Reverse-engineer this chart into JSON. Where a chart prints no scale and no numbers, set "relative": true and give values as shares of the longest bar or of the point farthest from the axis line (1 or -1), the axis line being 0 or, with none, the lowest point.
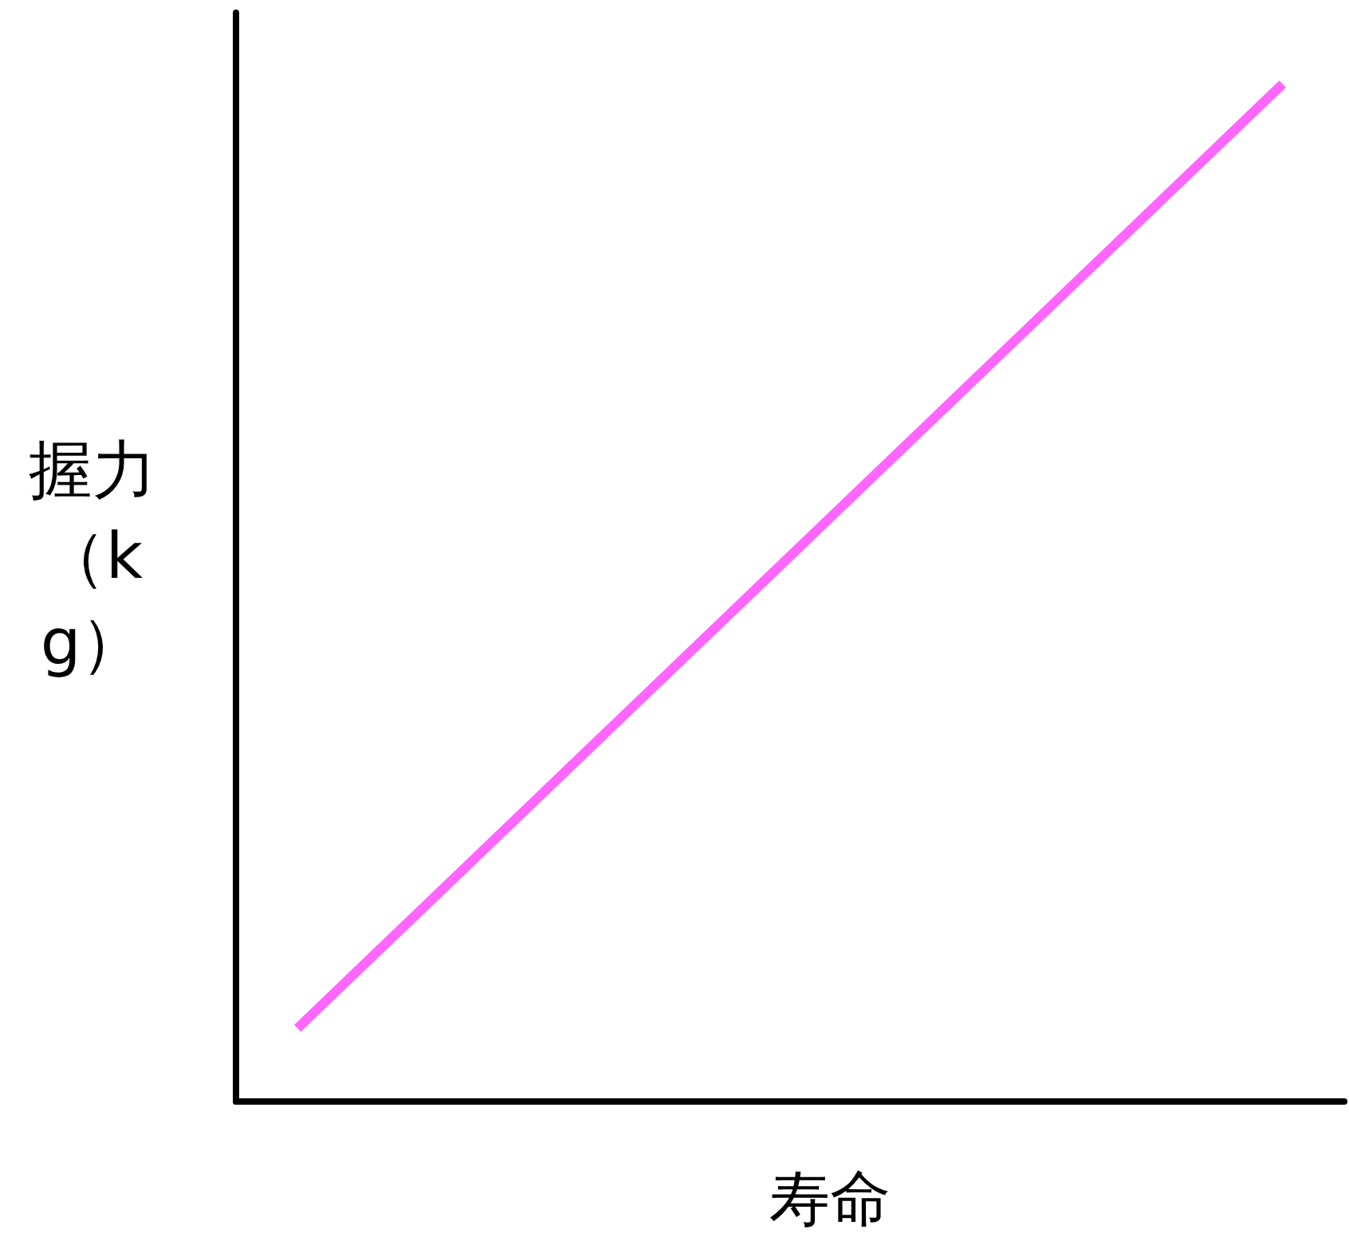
{
  "chart_data": {
    "type": "line",
    "relative": true,
    "xlabel": "寿命",
    "ylabel": "握力（kg）",
    "categories": [
      null,
      null,
      null,
      null,
      null,
      null,
      null,
      null,
      null,
      null,
      null,
      null,
      null,
      null,
      null,
      null,
      null,
      null,
      null
    ],
    "series": [
      {
        "color": "#ff66ff",
        "values": [
          null,
          0.072,
          null,
          null,
          null,
          null,
          null,
          null,
          null,
          null,
          null,
          null,
          null,
          null,
          null,
          null,
          null,
          1,
          null
        ]
      }
    ],
    "marker": "none",
    "line_style": "solid"
  }
}
